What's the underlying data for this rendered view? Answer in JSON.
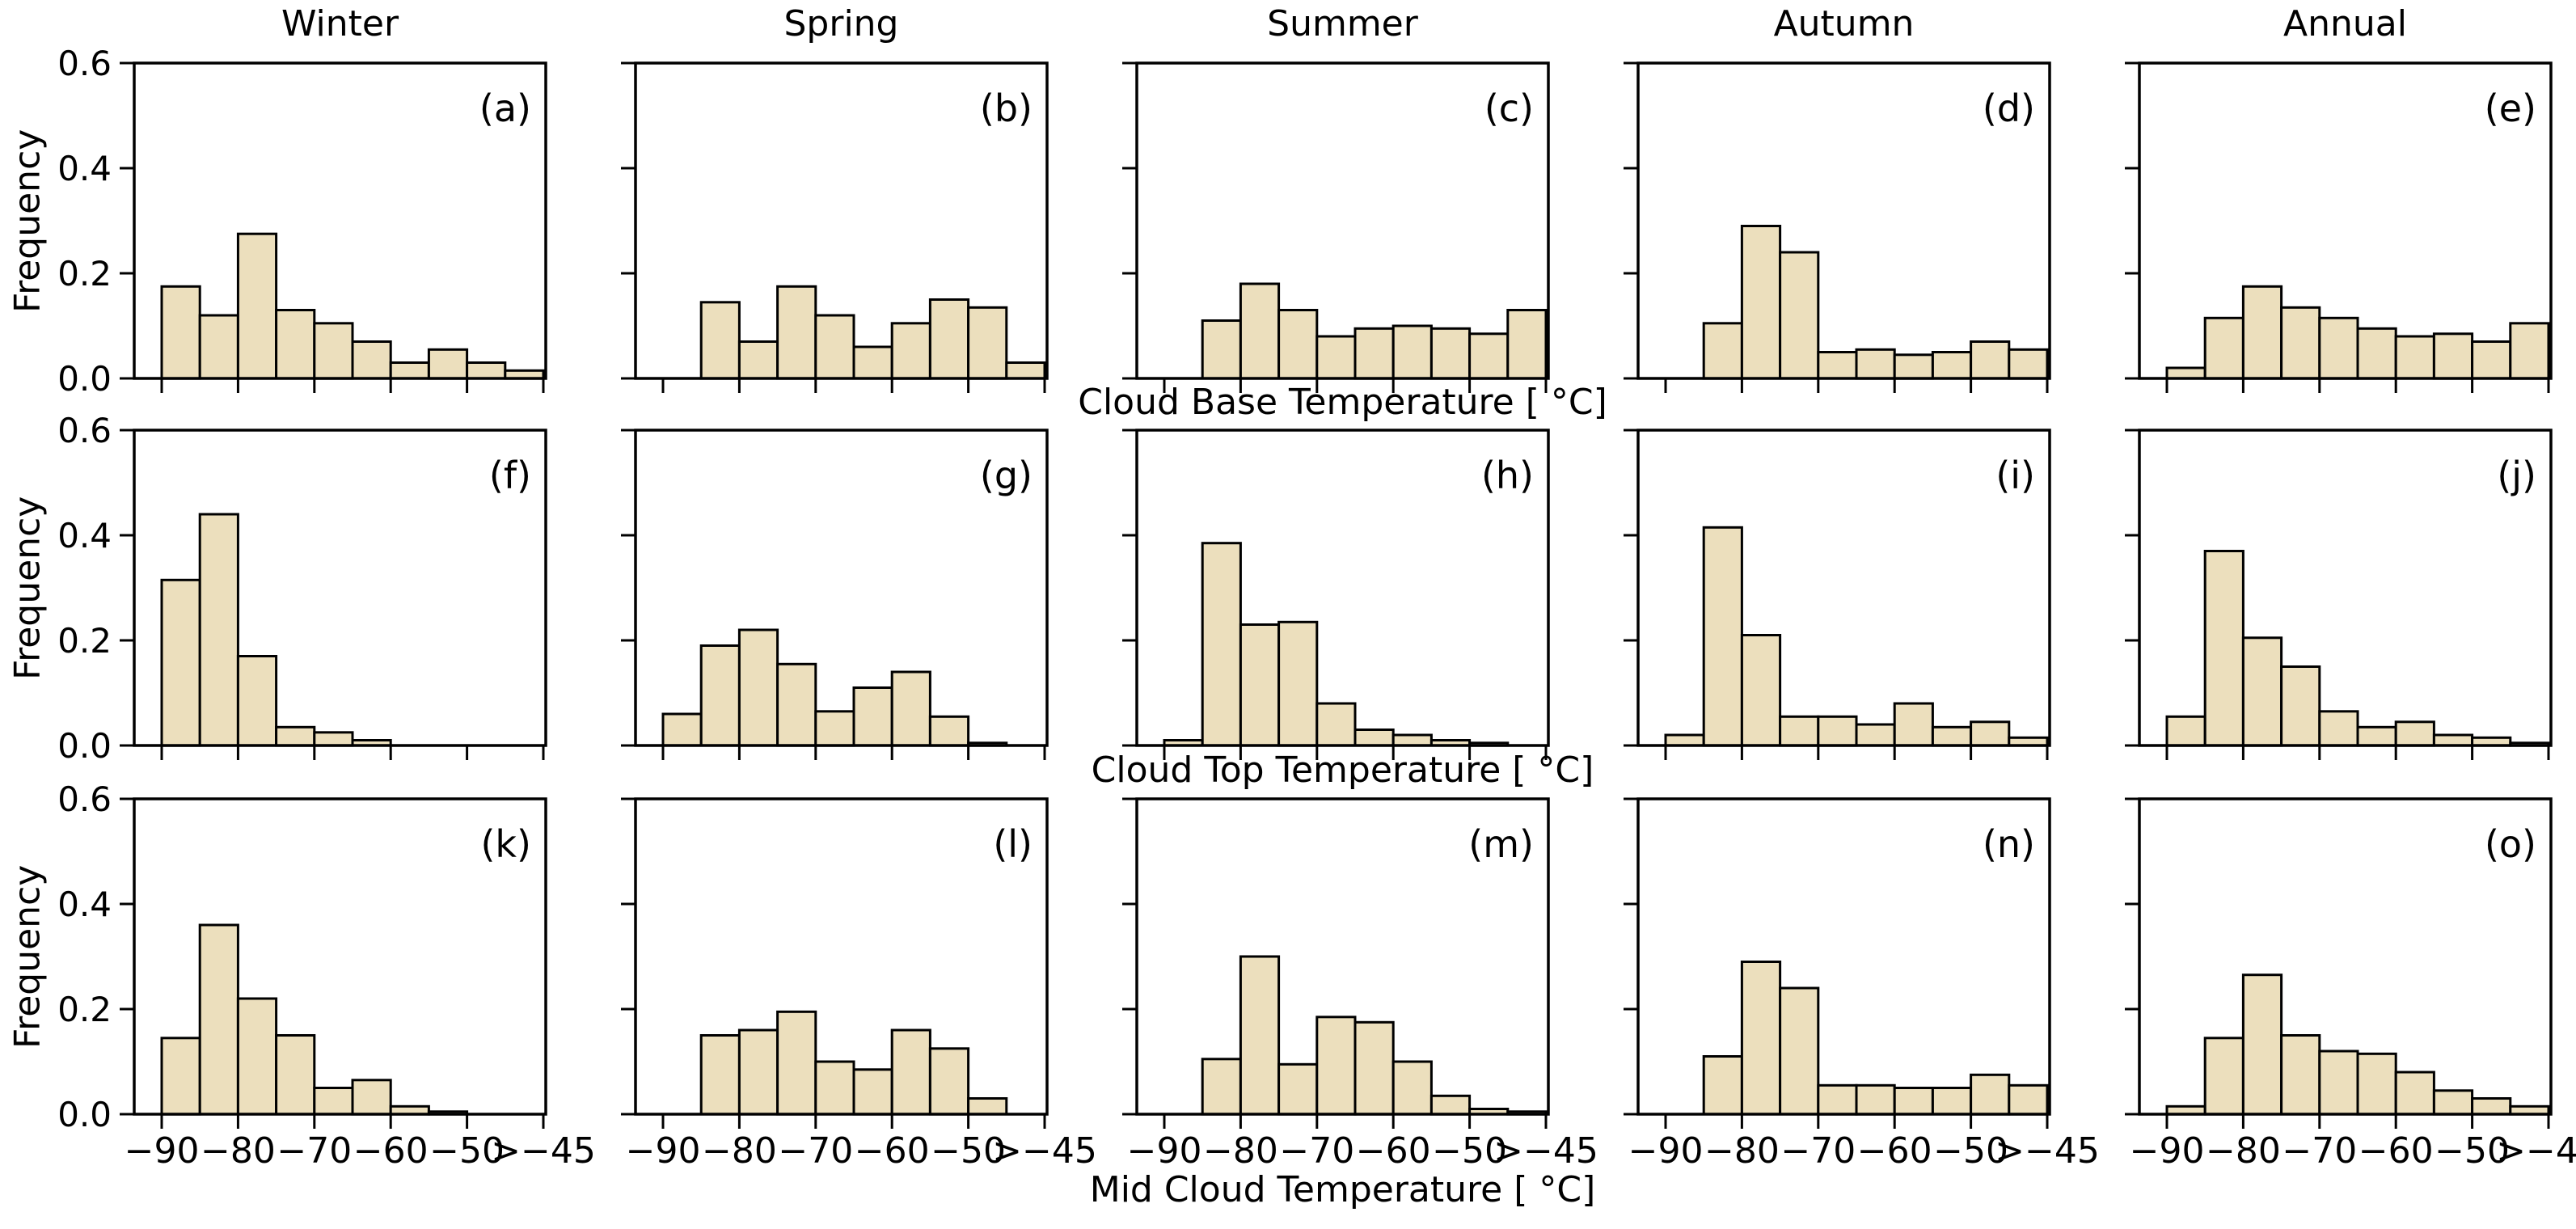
{
  "figure": {
    "background": "#ffffff",
    "bar_fill": "#ecdfbd",
    "bar_edge": "#000000",
    "ylabel": "Frequency",
    "xlabels": [
      "Cloud Base Temperature [ °C]",
      "Cloud Top Temperature [ °C]",
      "Mid Cloud Temperature [ °C]"
    ]
  },
  "chart_data": {
    "type": "bar",
    "subtype": "histogram-grid-3x5",
    "title": "",
    "columns": [
      "Winter",
      "Spring",
      "Summer",
      "Autumn",
      "Annual"
    ],
    "rows": [
      "Cloud Base Temperature [ °C]",
      "Cloud Top Temperature [ °C]",
      "Mid Cloud Temperature [ °C]"
    ],
    "ylabel": "Frequency",
    "ylim": [
      0,
      0.6
    ],
    "yticks": [
      "0.0",
      "0.2",
      "0.4",
      "0.6"
    ],
    "xticklabels": [
      "−90",
      "−80",
      "−70",
      "−60",
      "−50",
      ">−45"
    ],
    "grid": "off",
    "legend": "none",
    "bin_width_celsius": 5,
    "bin_left_edges_celsius": [
      -90,
      -85,
      -80,
      -75,
      -70,
      -65,
      -60,
      -55,
      -50,
      -45
    ],
    "last_bin_open_above_minus45": true,
    "panels": [
      {
        "label": "(a)",
        "column": "Winter",
        "row": "Cloud Base Temperature [ °C]",
        "values": [
          0.175,
          0.12,
          0.275,
          0.13,
          0.105,
          0.07,
          0.03,
          0.055,
          0.03,
          0.015
        ]
      },
      {
        "label": "(b)",
        "column": "Spring",
        "row": "Cloud Base Temperature [ °C]",
        "values": [
          0,
          0.145,
          0.07,
          0.175,
          0.12,
          0.06,
          0.105,
          0.15,
          0.135,
          0.03
        ]
      },
      {
        "label": "(c)",
        "column": "Summer",
        "row": "Cloud Base Temperature [ °C]",
        "values": [
          0,
          0.11,
          0.18,
          0.13,
          0.08,
          0.095,
          0.1,
          0.095,
          0.085,
          0.13
        ]
      },
      {
        "label": "(d)",
        "column": "Autumn",
        "row": "Cloud Base Temperature [ °C]",
        "values": [
          0,
          0.105,
          0.29,
          0.24,
          0.05,
          0.055,
          0.045,
          0.05,
          0.07,
          0.055
        ]
      },
      {
        "label": "(e)",
        "column": "Annual",
        "row": "Cloud Base Temperature [ °C]",
        "values": [
          0.02,
          0.115,
          0.175,
          0.135,
          0.115,
          0.095,
          0.08,
          0.085,
          0.07,
          0.105
        ]
      },
      {
        "label": "(f)",
        "column": "Winter",
        "row": "Cloud Top Temperature [ °C]",
        "values": [
          0.315,
          0.44,
          0.17,
          0.035,
          0.025,
          0.01,
          0,
          0,
          0,
          0
        ]
      },
      {
        "label": "(g)",
        "column": "Spring",
        "row": "Cloud Top Temperature [ °C]",
        "values": [
          0.06,
          0.19,
          0.22,
          0.155,
          0.065,
          0.11,
          0.14,
          0.055,
          0.005,
          0
        ]
      },
      {
        "label": "(h)",
        "column": "Summer",
        "row": "Cloud Top Temperature [ °C]",
        "values": [
          0.01,
          0.385,
          0.23,
          0.235,
          0.08,
          0.03,
          0.02,
          0.01,
          0.005,
          0
        ]
      },
      {
        "label": "(i)",
        "column": "Autumn",
        "row": "Cloud Top Temperature [ °C]",
        "values": [
          0.02,
          0.415,
          0.21,
          0.055,
          0.055,
          0.04,
          0.08,
          0.035,
          0.045,
          0.015
        ]
      },
      {
        "label": "(j)",
        "column": "Annual",
        "row": "Cloud Top Temperature [ °C]",
        "values": [
          0.055,
          0.37,
          0.205,
          0.15,
          0.065,
          0.035,
          0.045,
          0.02,
          0.015,
          0.005
        ]
      },
      {
        "label": "(k)",
        "column": "Winter",
        "row": "Mid Cloud Temperature [ °C]",
        "values": [
          0.145,
          0.36,
          0.22,
          0.15,
          0.05,
          0.065,
          0.015,
          0.005,
          0,
          0
        ]
      },
      {
        "label": "(l)",
        "column": "Spring",
        "row": "Mid Cloud Temperature [ °C]",
        "values": [
          0,
          0.15,
          0.16,
          0.195,
          0.1,
          0.085,
          0.16,
          0.125,
          0.03,
          0
        ]
      },
      {
        "label": "(m)",
        "column": "Summer",
        "row": "Mid Cloud Temperature [ °C]",
        "values": [
          0,
          0.105,
          0.3,
          0.095,
          0.185,
          0.175,
          0.1,
          0.035,
          0.01,
          0.005
        ]
      },
      {
        "label": "(n)",
        "column": "Autumn",
        "row": "Mid Cloud Temperature [ °C]",
        "values": [
          0,
          0.11,
          0.29,
          0.24,
          0.055,
          0.055,
          0.05,
          0.05,
          0.075,
          0.055
        ]
      },
      {
        "label": "(o)",
        "column": "Annual",
        "row": "Mid Cloud Temperature [ °C]",
        "values": [
          0.015,
          0.145,
          0.265,
          0.15,
          0.12,
          0.115,
          0.08,
          0.045,
          0.03,
          0.015
        ]
      }
    ]
  }
}
